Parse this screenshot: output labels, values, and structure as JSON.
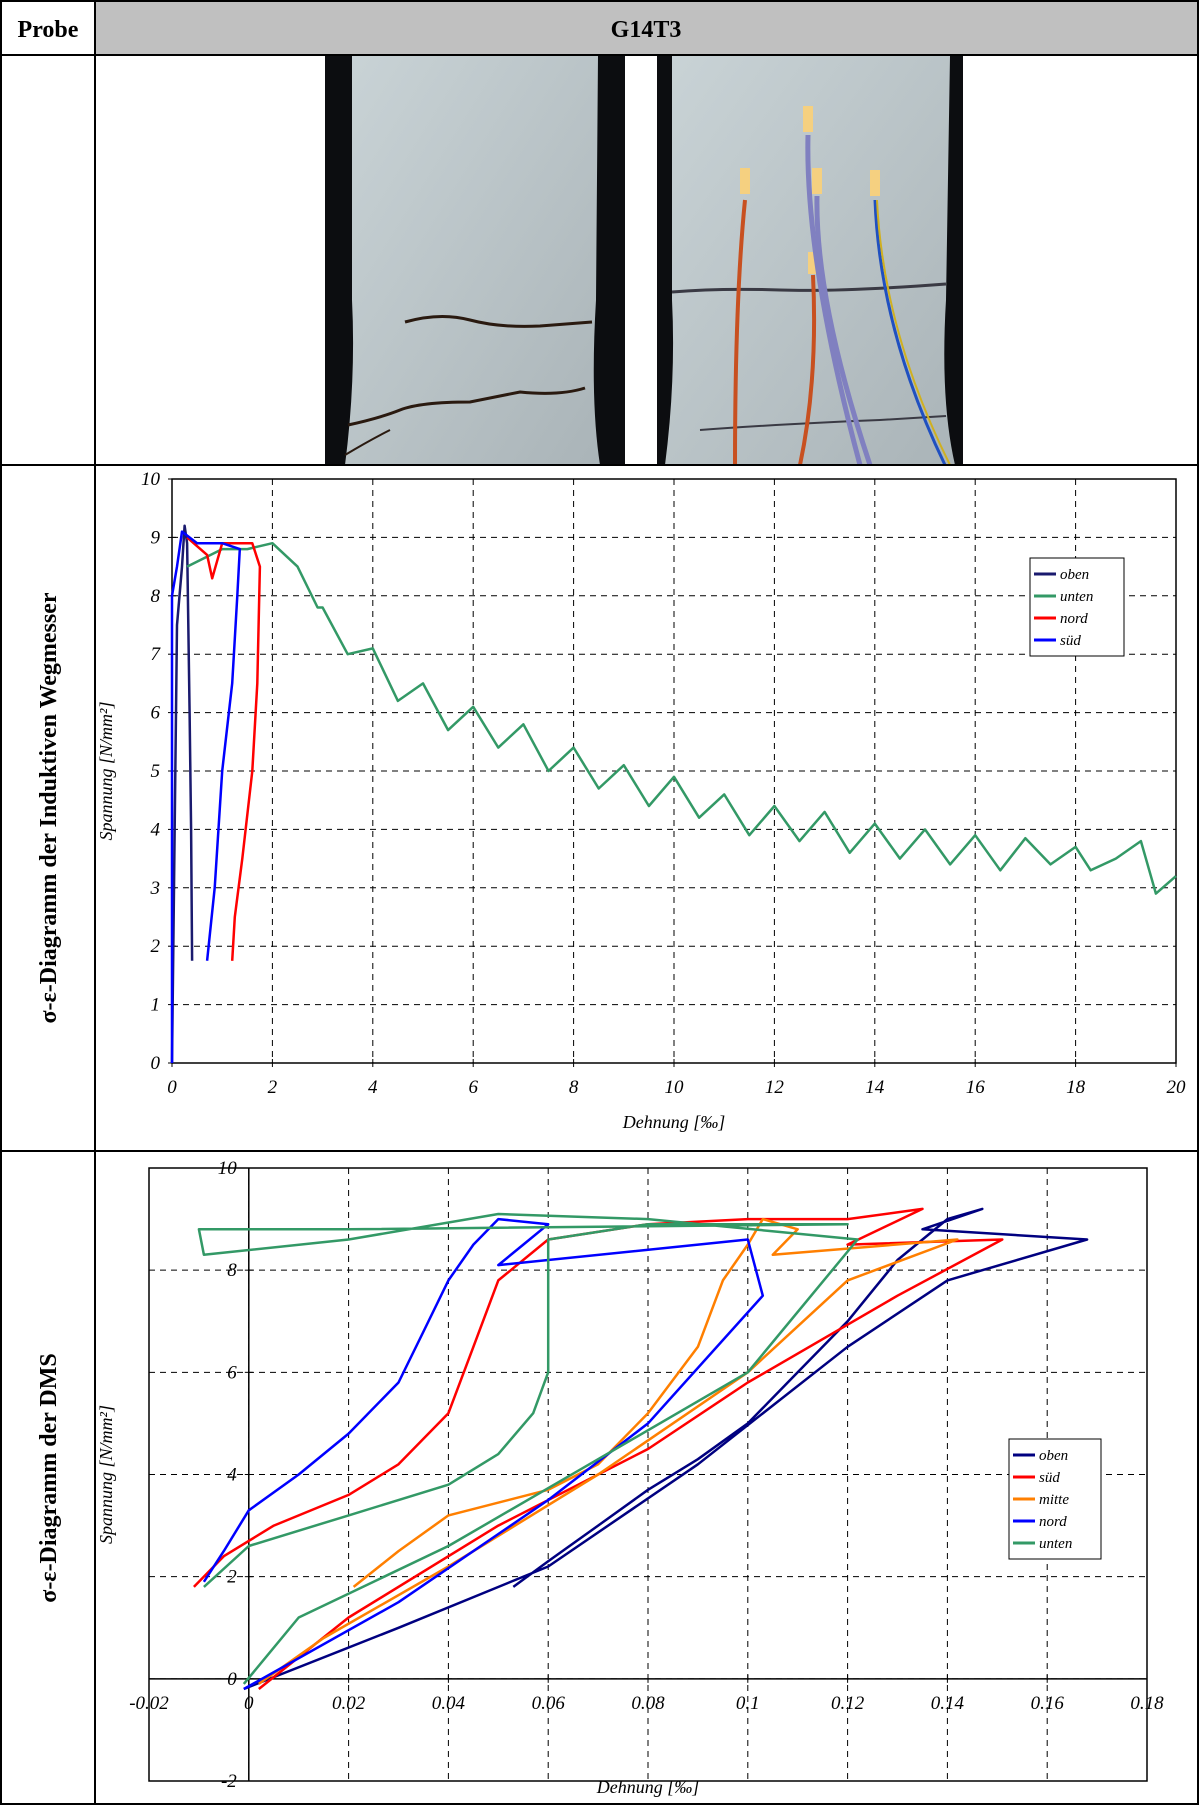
{
  "table": {
    "header": [
      "Probe",
      "G14T3"
    ],
    "row_labels": [
      "σ-ε-Diagramm der Induktiven Wegmesser",
      "σ-ε-Diagramm der DMS"
    ]
  },
  "chart_data": [
    {
      "type": "line",
      "xlabel": "Dehnung [‰]",
      "ylabel": "Spannung [N/mm²]",
      "xlim": [
        0,
        20
      ],
      "xticks": [
        0,
        2,
        4,
        6,
        8,
        10,
        12,
        14,
        16,
        18,
        20
      ],
      "ylim": [
        0,
        10
      ],
      "yticks": [
        0,
        1,
        2,
        3,
        4,
        5,
        6,
        7,
        8,
        9,
        10
      ],
      "grid": true,
      "legend": "upper right",
      "series": [
        {
          "name": "oben",
          "color": "#1a1a6e",
          "x": [
            0,
            0.1,
            0.2,
            0.25,
            0.3,
            0.35,
            0.38,
            0.4
          ],
          "values": [
            0,
            7.5,
            8.5,
            9.2,
            8.9,
            6,
            4,
            1.75
          ]
        },
        {
          "name": "unten",
          "color": "#339966",
          "x": [
            0.3,
            1.0,
            1.5,
            2,
            2.5,
            2.9,
            3.0,
            3.5,
            4.0,
            4.5,
            5.0,
            5.5,
            6.0,
            6.5,
            7.0,
            7.5,
            8.0,
            8.5,
            9.0,
            9.5,
            10.0,
            10.5,
            11.0,
            11.5,
            12.0,
            12.5,
            13.0,
            13.5,
            14.0,
            14.5,
            15.0,
            15.5,
            16.0,
            16.5,
            17.0,
            17.5,
            18,
            18.3,
            18.8,
            19.3,
            19.6,
            20
          ],
          "values": [
            8.5,
            8.8,
            8.8,
            8.9,
            8.5,
            7.8,
            7.8,
            7.0,
            7.1,
            6.2,
            6.5,
            5.7,
            6.1,
            5.4,
            5.8,
            5.0,
            5.4,
            4.7,
            5.1,
            4.4,
            4.9,
            4.2,
            4.6,
            3.9,
            4.4,
            3.8,
            4.3,
            3.6,
            4.1,
            3.5,
            4.0,
            3.4,
            3.9,
            3.3,
            3.85,
            3.4,
            3.7,
            3.3,
            3.5,
            3.8,
            2.9,
            3.2
          ]
        },
        {
          "name": "nord",
          "color": "#ff0000",
          "x": [
            0.3,
            0.7,
            0.8,
            1.0,
            1.6,
            1.75,
            1.7,
            1.6,
            1.4,
            1.25,
            1.2
          ],
          "values": [
            9,
            8.7,
            8.3,
            8.9,
            8.9,
            8.5,
            6.5,
            5,
            3.5,
            2.5,
            1.75
          ]
        },
        {
          "name": "süd",
          "color": "#0000ff",
          "x": [
            0,
            0,
            0.1,
            0.2,
            0.5,
            1.0,
            1.35,
            1.3,
            1.2,
            1.0,
            0.85,
            0.7
          ],
          "values": [
            0,
            8,
            8.5,
            9.1,
            8.9,
            8.9,
            8.8,
            8,
            6.5,
            5,
            3,
            1.75
          ]
        }
      ]
    },
    {
      "type": "line",
      "xlabel": "Dehnung [‰]",
      "ylabel": "Spannung [N/mm²]",
      "xlim": [
        -0.02,
        0.18
      ],
      "xticks": [
        -0.02,
        0,
        0.02,
        0.04,
        0.06,
        0.08,
        0.1,
        0.12,
        0.14,
        0.16,
        0.18
      ],
      "ylim": [
        -2,
        10
      ],
      "yticks": [
        -2,
        0,
        2,
        4,
        6,
        8,
        10
      ],
      "grid": true,
      "legend": "right",
      "series": [
        {
          "name": "oben",
          "color": "#000080",
          "x": [
            0.053,
            0.06,
            0.07,
            0.08,
            0.09,
            0.1,
            0.11,
            0.12,
            0.13,
            0.14,
            0.147,
            0.135,
            0.168,
            0.14,
            0.12,
            0.09,
            0.06,
            0.03,
            -0.001
          ],
          "values": [
            1.8,
            2.3,
            3.0,
            3.7,
            4.3,
            5.0,
            6.0,
            7.0,
            8.2,
            9.0,
            9.2,
            8.8,
            8.6,
            7.8,
            6.5,
            4.2,
            2.2,
            1.0,
            -0.2
          ]
        },
        {
          "name": "süd",
          "color": "#ff0000",
          "x": [
            -0.011,
            -0.005,
            0.005,
            0.02,
            0.03,
            0.04,
            0.045,
            0.05,
            0.06,
            0.08,
            0.1,
            0.12,
            0.135,
            0.12,
            0.151,
            0.13,
            0.1,
            0.08,
            0.05,
            0.02,
            0.002
          ],
          "values": [
            1.8,
            2.4,
            3.0,
            3.6,
            4.2,
            5.2,
            6.5,
            7.8,
            8.6,
            8.9,
            9.0,
            9.0,
            9.2,
            8.5,
            8.6,
            7.5,
            5.8,
            4.5,
            3.0,
            1.2,
            -0.2
          ]
        },
        {
          "name": "mitte",
          "color": "#ff7f00",
          "x": [
            0.021,
            0.03,
            0.04,
            0.06,
            0.07,
            0.08,
            0.09,
            0.095,
            0.1,
            0.103,
            0.11,
            0.105,
            0.142,
            0.12,
            0.1,
            0.07,
            0.04,
            0.015,
            0.002
          ],
          "values": [
            1.8,
            2.5,
            3.2,
            3.7,
            4.2,
            5.2,
            6.5,
            7.8,
            8.5,
            9.0,
            8.8,
            8.3,
            8.6,
            7.8,
            6.0,
            4.0,
            2.2,
            0.8,
            -0.1
          ]
        },
        {
          "name": "nord",
          "color": "#0000ff",
          "x": [
            -0.009,
            -0.005,
            0,
            0.01,
            0.02,
            0.03,
            0.035,
            0.04,
            0.045,
            0.05,
            0.06,
            0.055,
            0.05,
            0.1,
            0.103,
            0.08,
            0.06,
            0.03,
            -0.001
          ],
          "values": [
            1.9,
            2.5,
            3.3,
            4.0,
            4.8,
            5.8,
            6.8,
            7.8,
            8.5,
            9.0,
            8.9,
            8.5,
            8.1,
            8.6,
            7.5,
            5.0,
            3.5,
            1.5,
            -0.2
          ]
        },
        {
          "name": "unten",
          "color": "#339966",
          "x": [
            -0.009,
            0,
            0.02,
            0.04,
            0.05,
            0.057,
            0.06,
            0.06,
            0.06,
            0.08,
            0.12,
            0.02,
            -0.01,
            -0.009,
            0.02,
            0.05,
            0.08,
            0.122,
            0.1,
            0.07,
            0.04,
            0.01,
            -0.001
          ],
          "values": [
            1.8,
            2.6,
            3.2,
            3.8,
            4.4,
            5.2,
            6.0,
            7.5,
            8.6,
            8.9,
            8.9,
            8.8,
            8.8,
            8.3,
            8.6,
            9.1,
            9.0,
            8.6,
            6.0,
            4.3,
            2.6,
            1.2,
            -0.1
          ]
        }
      ]
    }
  ]
}
